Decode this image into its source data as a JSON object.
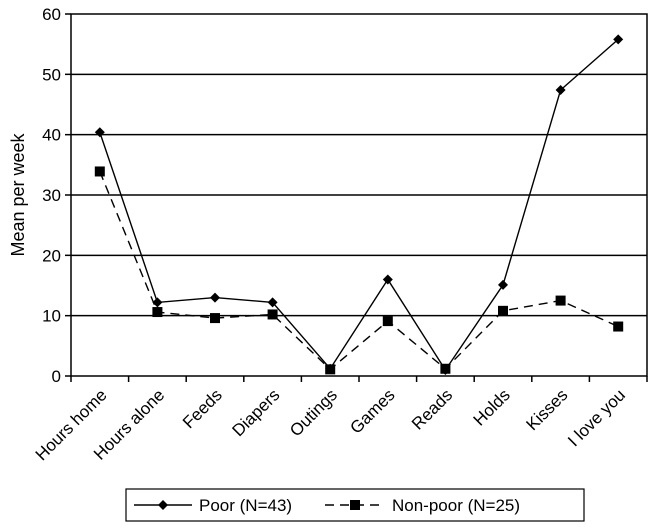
{
  "chart_data": {
    "type": "line",
    "title": "",
    "xlabel": "",
    "ylabel": "Mean per week",
    "ylim": [
      0,
      60
    ],
    "yticks": [
      0,
      10,
      20,
      30,
      40,
      50,
      60
    ],
    "grid": "horizontal",
    "legend_position": "bottom",
    "categories": [
      "Hours home",
      "Hours alone",
      "Feeds",
      "Diapers",
      "Outings",
      "Games",
      "Reads",
      "Holds",
      "Kisses",
      "I love you"
    ],
    "series": [
      {
        "name": "Poor (N=43)",
        "marker": "diamond",
        "line_style": "solid",
        "values": [
          40.4,
          12.2,
          13.0,
          12.2,
          1.2,
          16.0,
          1.0,
          15.1,
          47.4,
          55.8
        ]
      },
      {
        "name": "Non-poor (N=25)",
        "marker": "square",
        "line_style": "dashed",
        "values": [
          33.9,
          10.6,
          9.6,
          10.2,
          1.1,
          9.1,
          1.2,
          10.8,
          12.5,
          8.2
        ]
      }
    ]
  }
}
